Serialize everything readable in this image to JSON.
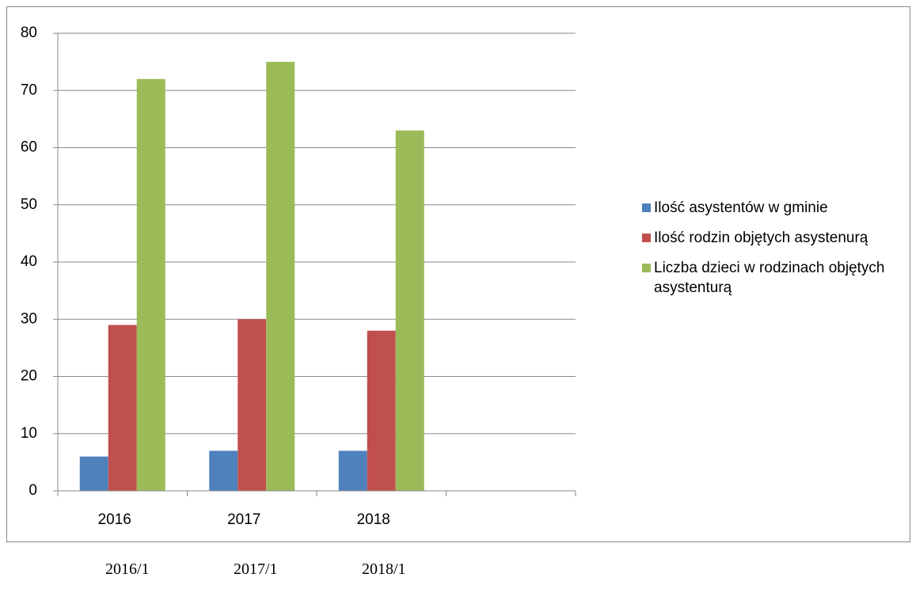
{
  "chart_data": {
    "type": "bar",
    "categories": [
      "2016",
      "2017",
      "2018",
      null
    ],
    "series": [
      {
        "name": "Ilość asystentów w gminie",
        "color": "#4f81bd",
        "values": [
          6,
          7,
          7,
          null
        ]
      },
      {
        "name": "Ilość rodzin objętych asystenurą",
        "color": "#c0504d",
        "values": [
          29,
          30,
          28,
          null
        ]
      },
      {
        "name": "Liczba dzieci w rodzinach objętych asystenturą",
        "color": "#9bbb59",
        "values": [
          72,
          75,
          63,
          null
        ]
      }
    ],
    "ylim": [
      0,
      80
    ],
    "yticks": [
      0,
      10,
      20,
      30,
      40,
      50,
      60,
      70,
      80
    ],
    "grid": true,
    "legend": "right"
  },
  "captions": [
    "2016/1",
    "2017/1",
    "2018/1"
  ]
}
